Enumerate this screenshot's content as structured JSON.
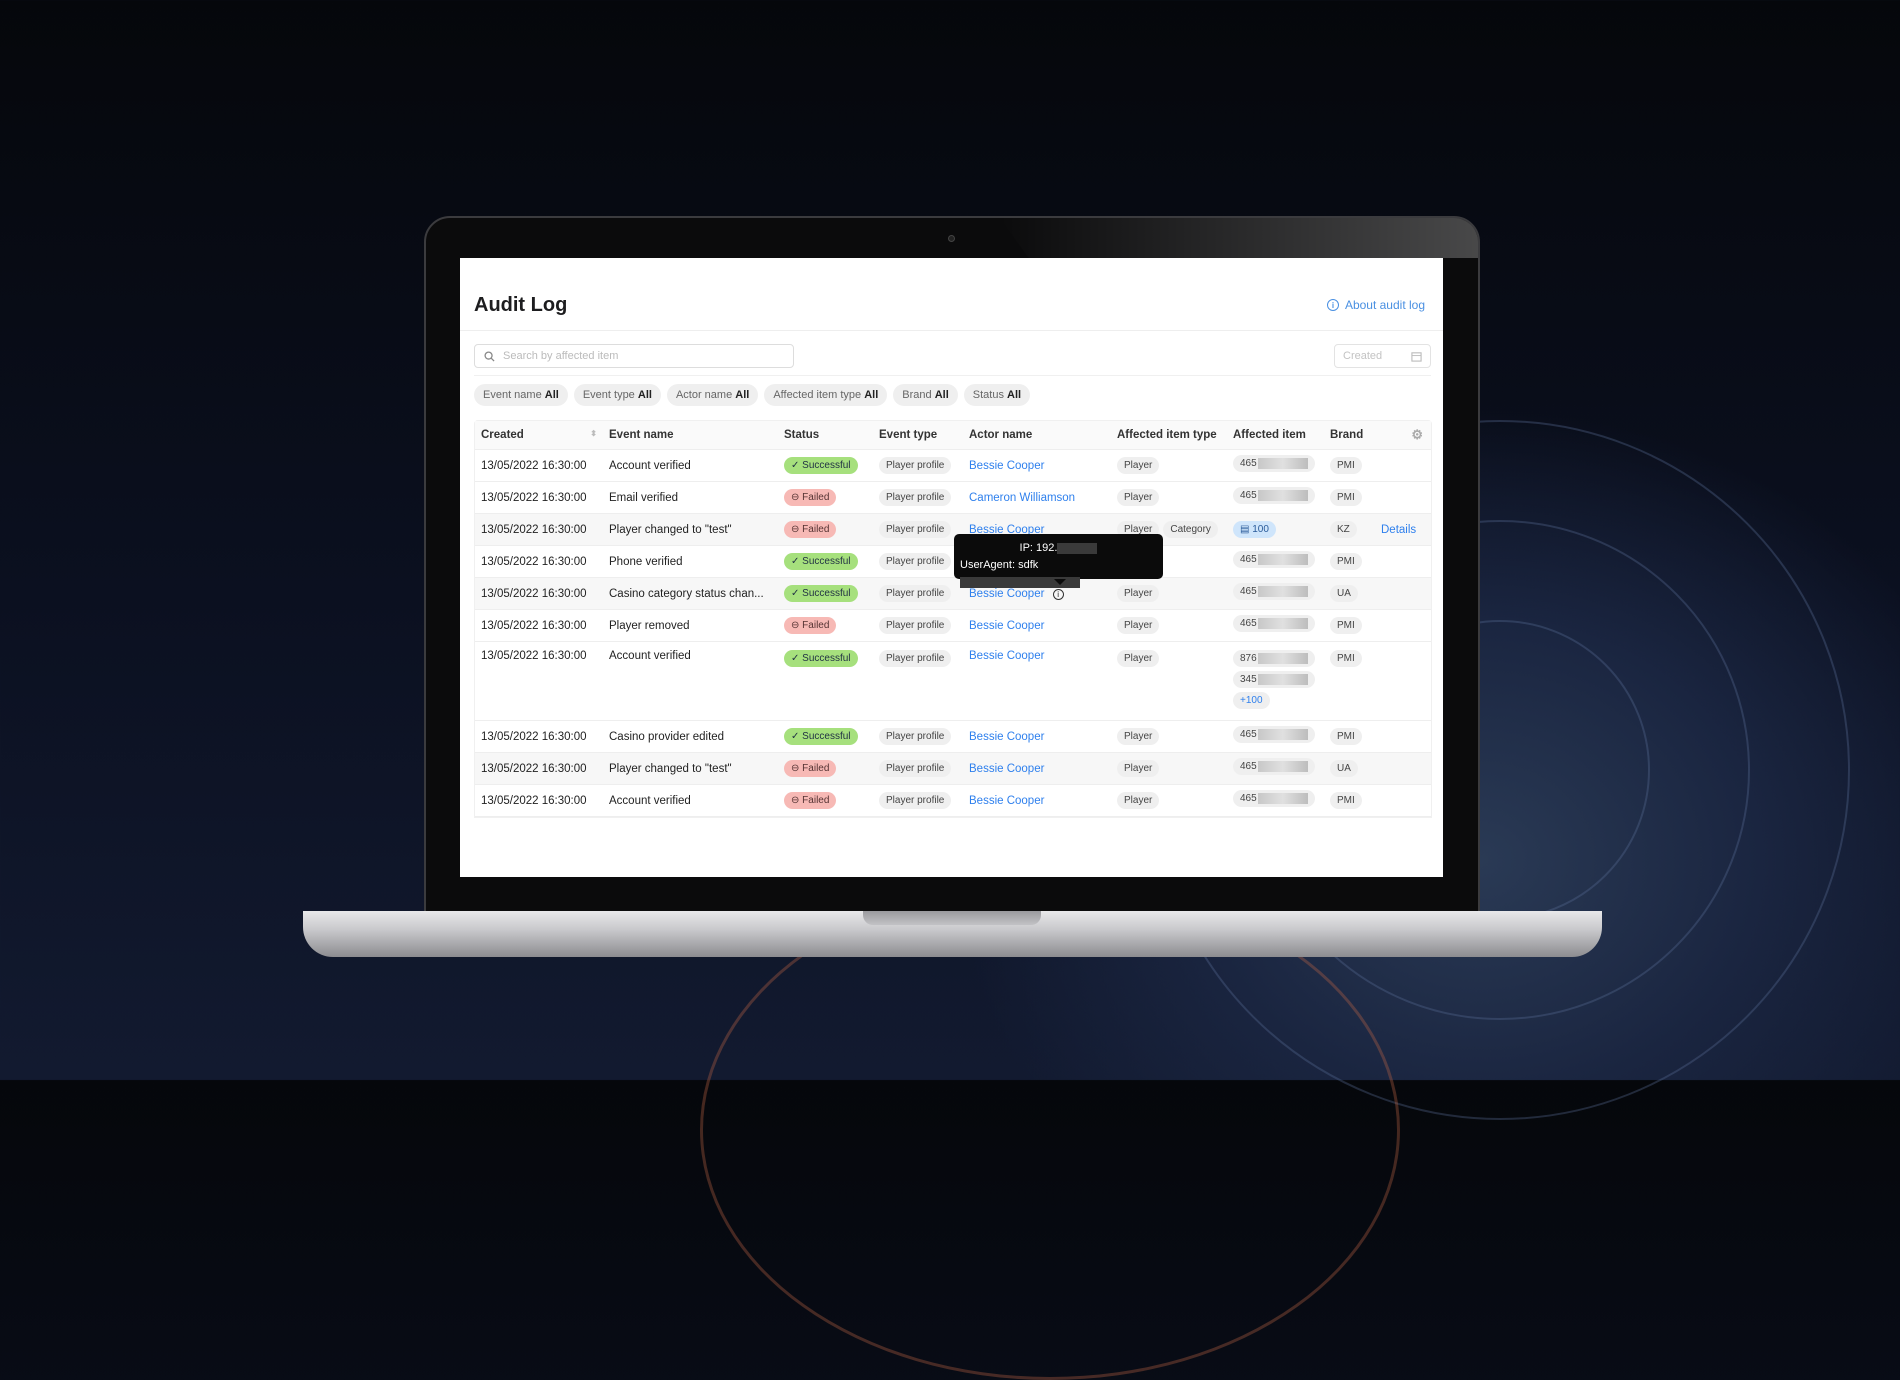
{
  "page": {
    "title": "Audit Log",
    "about_link": "About audit log"
  },
  "search": {
    "placeholder": "Search by affected item"
  },
  "date_filter": {
    "placeholder": "Created"
  },
  "filters": [
    {
      "label": "Event name",
      "value": "All"
    },
    {
      "label": "Event type",
      "value": "All"
    },
    {
      "label": "Actor name",
      "value": "All"
    },
    {
      "label": "Affected item type",
      "value": "All"
    },
    {
      "label": "Brand",
      "value": "All"
    },
    {
      "label": "Status",
      "value": "All"
    }
  ],
  "table": {
    "columns": [
      "Created",
      "Event name",
      "Status",
      "Event type",
      "Actor name",
      "Affected item type",
      "Affected item",
      "Brand"
    ],
    "rows": [
      {
        "created": "13/05/2022 16:30:00",
        "event": "Account verified",
        "status": "Successful",
        "type": "Player profile",
        "actor": "Bessie Cooper",
        "item_types": [
          "Player"
        ],
        "items": [
          "465"
        ],
        "brand": "PMI"
      },
      {
        "created": "13/05/2022 16:30:00",
        "event": "Email verified",
        "status": "Failed",
        "type": "Player profile",
        "actor": "Cameron Williamson",
        "item_types": [
          "Player"
        ],
        "items": [
          "465"
        ],
        "brand": "PMI"
      },
      {
        "created": "13/05/2022 16:30:00",
        "event": "Player changed to \"test\"",
        "status": "Failed",
        "type": "Player profile",
        "actor": "Bessie Cooper",
        "item_types": [
          "Player",
          "Category"
        ],
        "items": [
          "100"
        ],
        "brand": "KZ",
        "details": "Details"
      },
      {
        "created": "13/05/2022 16:30:00",
        "event": "Phone verified",
        "status": "Successful",
        "type": "Player profile",
        "actor": "",
        "item_types": [],
        "items": [
          "465"
        ],
        "brand": "PMI"
      },
      {
        "created": "13/05/2022 16:30:00",
        "event": "Casino category status chan...",
        "status": "Successful",
        "type": "Player profile",
        "actor": "Bessie Cooper",
        "info": true,
        "item_types": [
          "Player"
        ],
        "items": [
          "465"
        ],
        "brand": "UA"
      },
      {
        "created": "13/05/2022 16:30:00",
        "event": "Player removed",
        "status": "Failed",
        "type": "Player profile",
        "actor": "Bessie Cooper",
        "item_types": [
          "Player"
        ],
        "items": [
          "465"
        ],
        "brand": "PMI"
      },
      {
        "created": "13/05/2022 16:30:00",
        "event": "Account verified",
        "status": "Successful",
        "type": "Player profile",
        "actor": "Bessie Cooper",
        "item_types": [
          "Player"
        ],
        "items": [
          "876",
          "345"
        ],
        "more": "+100",
        "brand": "PMI"
      },
      {
        "created": "13/05/2022 16:30:00",
        "event": "Casino provider edited",
        "status": "Successful",
        "type": "Player profile",
        "actor": "Bessie Cooper",
        "item_types": [
          "Player"
        ],
        "items": [
          "465"
        ],
        "brand": "PMI"
      },
      {
        "created": "13/05/2022 16:30:00",
        "event": "Player changed to \"test\"",
        "status": "Failed",
        "type": "Player profile",
        "actor": "Bessie Cooper",
        "item_types": [
          "Player"
        ],
        "items": [
          "465"
        ],
        "brand": "UA"
      },
      {
        "created": "13/05/2022 16:30:00",
        "event": "Account verified",
        "status": "Failed",
        "type": "Player profile",
        "actor": "Bessie Cooper",
        "item_types": [
          "Player"
        ],
        "items": [
          "465"
        ],
        "brand": "PMI"
      }
    ]
  },
  "tooltip": {
    "ip": "IP: 192.",
    "user_agent": "UserAgent: sdfk"
  },
  "colors": {
    "success": "#a6e07d",
    "failed": "#f7b9b5",
    "link": "#2f80ed"
  }
}
